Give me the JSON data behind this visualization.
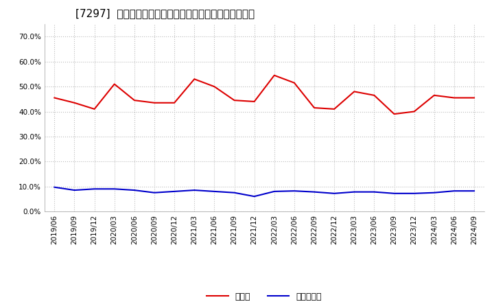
{
  "title": "[7297]  現頲金、有利子負債の総資産に対する比率の推移",
  "x_labels": [
    "2019/06",
    "2019/09",
    "2019/12",
    "2020/03",
    "2020/06",
    "2020/09",
    "2020/12",
    "2021/03",
    "2021/06",
    "2021/09",
    "2021/12",
    "2022/03",
    "2022/06",
    "2022/09",
    "2022/12",
    "2023/03",
    "2023/06",
    "2023/09",
    "2023/12",
    "2024/03",
    "2024/06",
    "2024/09"
  ],
  "cash_ratio": [
    0.455,
    0.435,
    0.41,
    0.51,
    0.445,
    0.435,
    0.435,
    0.53,
    0.5,
    0.445,
    0.44,
    0.545,
    0.515,
    0.415,
    0.41,
    0.48,
    0.465,
    0.39,
    0.4,
    0.465,
    0.455,
    0.455
  ],
  "debt_ratio": [
    0.097,
    0.085,
    0.09,
    0.09,
    0.085,
    0.075,
    0.08,
    0.085,
    0.08,
    0.075,
    0.06,
    0.08,
    0.082,
    0.078,
    0.072,
    0.078,
    0.078,
    0.072,
    0.072,
    0.075,
    0.082,
    0.082
  ],
  "cash_color": "#dd0000",
  "debt_color": "#0000cc",
  "background_color": "#ffffff",
  "grid_color": "#bbbbbb",
  "ylim": [
    0.0,
    0.75
  ],
  "yticks": [
    0.0,
    0.1,
    0.2,
    0.3,
    0.4,
    0.5,
    0.6,
    0.7
  ],
  "legend_cash": "現頲金",
  "legend_debt": "有利子負債",
  "title_fontsize": 11,
  "axis_fontsize": 7.5,
  "legend_fontsize": 9
}
